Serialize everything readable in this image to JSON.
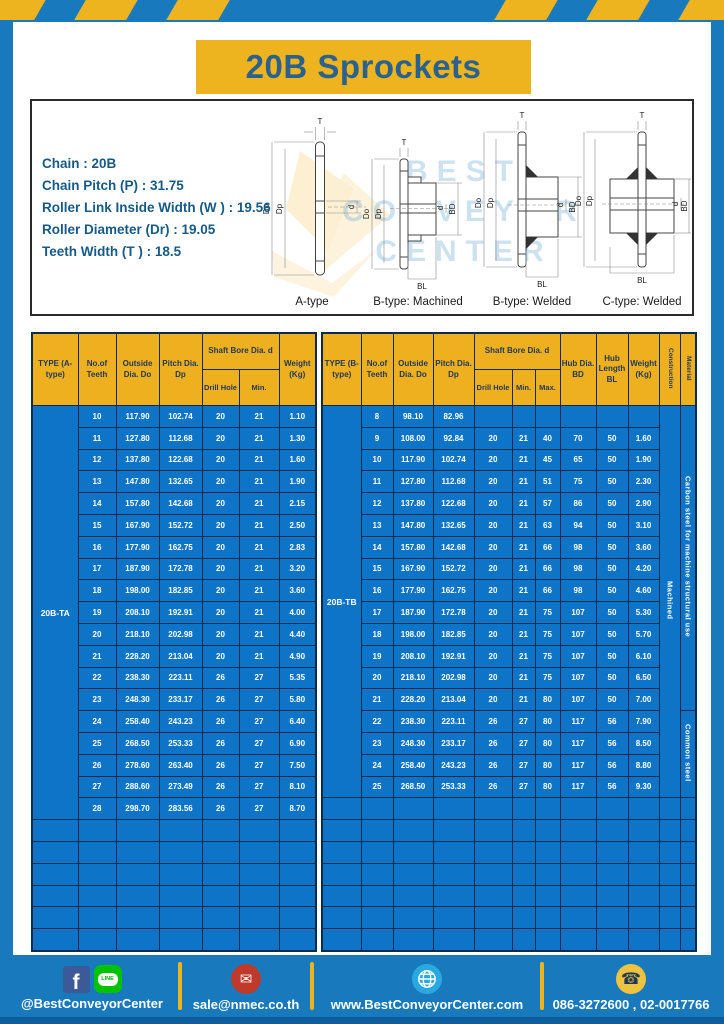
{
  "title": "20B Sprockets",
  "specs": {
    "lines": [
      "Chain  : 20B",
      "Chain Pitch (P)  :  31.75",
      "Roller Link Inside Width (W )  :  19.56",
      "Roller Diameter (Dr)  : 19.05",
      "Teeth Width (T )  :  18.5"
    ]
  },
  "diagrams": {
    "labels": [
      "A-type",
      "B-type: Machined",
      "B-type: Welded",
      "C-type: Welded"
    ],
    "dims": {
      "t": "T",
      "dia_outer": "Do",
      "dia_pitch": "Dp",
      "bore": "d",
      "hub_dia": "BD",
      "hub_len": "BL"
    },
    "watermark": [
      "BEST",
      "CONVEYOR",
      "CENTER"
    ]
  },
  "table_a": {
    "headers": {
      "type": "TYPE (A-type)",
      "teeth": "No.of Teeth",
      "outside": "Outside Dia. Do",
      "pitch": "Pitch Dia. Dp",
      "shaft_bore": "Shaft Bore Dia. d",
      "drill": "Drill Hole",
      "min": "Min.",
      "weight": "Weight (Kg)"
    },
    "type_label": "20B-TA",
    "rows": [
      [
        "10",
        "117.90",
        "102.74",
        "20",
        "21",
        "1.10"
      ],
      [
        "11",
        "127.80",
        "112.68",
        "20",
        "21",
        "1.30"
      ],
      [
        "12",
        "137.80",
        "122.68",
        "20",
        "21",
        "1.60"
      ],
      [
        "13",
        "147.80",
        "132.65",
        "20",
        "21",
        "1.90"
      ],
      [
        "14",
        "157.80",
        "142.68",
        "20",
        "21",
        "2.15"
      ],
      [
        "15",
        "167.90",
        "152.72",
        "20",
        "21",
        "2.50"
      ],
      [
        "16",
        "177.90",
        "162.75",
        "20",
        "21",
        "2.83"
      ],
      [
        "17",
        "187.90",
        "172.78",
        "20",
        "21",
        "3.20"
      ],
      [
        "18",
        "198.00",
        "182.85",
        "20",
        "21",
        "3.60"
      ],
      [
        "19",
        "208.10",
        "192.91",
        "20",
        "21",
        "4.00"
      ],
      [
        "20",
        "218.10",
        "202.98",
        "20",
        "21",
        "4.40"
      ],
      [
        "21",
        "228.20",
        "213.04",
        "20",
        "21",
        "4.90"
      ],
      [
        "22",
        "238.30",
        "223.11",
        "26",
        "27",
        "5.35"
      ],
      [
        "23",
        "248.30",
        "233.17",
        "26",
        "27",
        "5.80"
      ],
      [
        "24",
        "258.40",
        "243.23",
        "26",
        "27",
        "6.40"
      ],
      [
        "25",
        "268.50",
        "253.33",
        "26",
        "27",
        "6.90"
      ],
      [
        "26",
        "278.60",
        "263.40",
        "26",
        "27",
        "7.50"
      ],
      [
        "27",
        "288.60",
        "273.49",
        "26",
        "27",
        "8.10"
      ],
      [
        "28",
        "298.70",
        "283.56",
        "26",
        "27",
        "8.70"
      ]
    ],
    "empty_rows": 6
  },
  "table_b": {
    "headers": {
      "type": "TYPE (B-type)",
      "teeth": "No.of Teeth",
      "outside": "Outside Dia. Do",
      "pitch": "Pitch Dia. Dp",
      "shaft_bore": "Shaft Bore Dia. d",
      "drill": "Drill Hole",
      "min": "Min.",
      "max": "Max.",
      "hub_dia": "Hub Dia. BD",
      "hub_length": "Hub Length BL",
      "weight": "Weight (Kg)",
      "construction": "Construction",
      "material": "Material"
    },
    "type_label": "20B-TB",
    "rows": [
      [
        "8",
        "98.10",
        "82.96",
        "",
        "",
        "",
        "",
        "",
        ""
      ],
      [
        "9",
        "108.00",
        "92.84",
        "20",
        "21",
        "40",
        "70",
        "50",
        "1.60"
      ],
      [
        "10",
        "117.90",
        "102.74",
        "20",
        "21",
        "45",
        "65",
        "50",
        "1.90"
      ],
      [
        "11",
        "127.80",
        "112.68",
        "20",
        "21",
        "51",
        "75",
        "50",
        "2.30"
      ],
      [
        "12",
        "137.80",
        "122.68",
        "20",
        "21",
        "57",
        "86",
        "50",
        "2.90"
      ],
      [
        "13",
        "147.80",
        "132.65",
        "20",
        "21",
        "63",
        "94",
        "50",
        "3.10"
      ],
      [
        "14",
        "157.80",
        "142.68",
        "20",
        "21",
        "66",
        "98",
        "50",
        "3.60"
      ],
      [
        "15",
        "167.90",
        "152.72",
        "20",
        "21",
        "66",
        "98",
        "50",
        "4.20"
      ],
      [
        "16",
        "177.90",
        "162.75",
        "20",
        "21",
        "66",
        "98",
        "50",
        "4.60"
      ],
      [
        "17",
        "187.90",
        "172.78",
        "20",
        "21",
        "75",
        "107",
        "50",
        "5.30"
      ],
      [
        "18",
        "198.00",
        "182.85",
        "20",
        "21",
        "75",
        "107",
        "50",
        "5.70"
      ],
      [
        "19",
        "208.10",
        "192.91",
        "20",
        "21",
        "75",
        "107",
        "50",
        "6.10"
      ],
      [
        "20",
        "218.10",
        "202.98",
        "20",
        "21",
        "75",
        "107",
        "50",
        "6.50"
      ],
      [
        "21",
        "228.20",
        "213.04",
        "20",
        "21",
        "80",
        "107",
        "50",
        "7.00"
      ],
      [
        "22",
        "238.30",
        "223.11",
        "26",
        "27",
        "80",
        "117",
        "56",
        "7.90"
      ],
      [
        "23",
        "248.30",
        "233.17",
        "26",
        "27",
        "80",
        "117",
        "56",
        "8.50"
      ],
      [
        "24",
        "258.40",
        "243.23",
        "26",
        "27",
        "80",
        "117",
        "56",
        "8.80"
      ],
      [
        "25",
        "268.50",
        "253.33",
        "26",
        "27",
        "80",
        "117",
        "56",
        "9.30"
      ]
    ],
    "construction": {
      "label": "Machined",
      "span": 18
    },
    "materials": [
      {
        "label": "Carbon steel for machine structural use",
        "start": 0,
        "span": 14
      },
      {
        "label": "Common steel",
        "start": 14,
        "span": 4
      }
    ],
    "empty_rows": 7
  },
  "footer": {
    "social_label": "@BestConveyorCenter",
    "email": "sale@nmec.co.th",
    "website": "www.BestConveyorCenter.com",
    "phones": "086-3272600 , 02-0017766",
    "fb_glyph": "f",
    "line_glyph": "LINE"
  },
  "colors": {
    "frame_blue": "#1879bd",
    "accent_yellow": "#eeb41f",
    "cell_blue": "#0e74c8",
    "border_navy": "#0b2b4d",
    "header_yellow": "#efb01f"
  }
}
